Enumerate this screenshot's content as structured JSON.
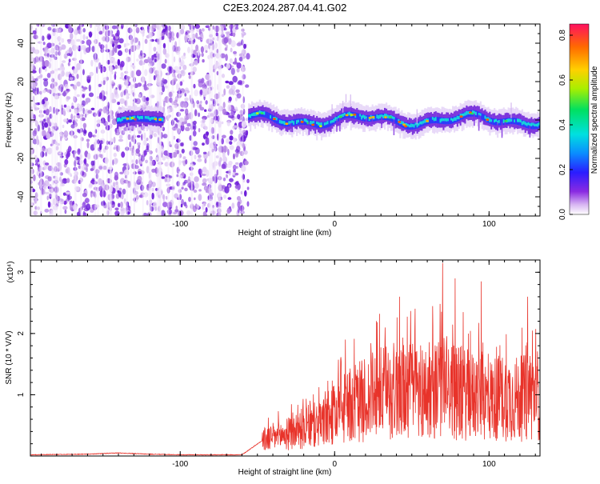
{
  "title": "C2E3.2024.287.04.41.G02",
  "chart_data": [
    {
      "type": "heatmap",
      "xlabel": "Height of straight line (km)",
      "ylabel": "Frequency (Hz)",
      "xlim": [
        -197,
        133
      ],
      "ylim": [
        -50,
        50
      ],
      "xticks": [
        -100,
        0,
        100
      ],
      "yticks": [
        -40,
        -20,
        0,
        20,
        40
      ],
      "noise_region_x": [
        -197,
        -56
      ],
      "signal_patches": [
        {
          "x_start": -141,
          "x_end": -112,
          "center_freq": 0
        },
        {
          "x_start": -56,
          "x_end": 133,
          "center_freq": 0
        }
      ],
      "colorbar": {
        "label": "Normalized spectral amplitude",
        "range": [
          0.0,
          0.85
        ],
        "ticks": [
          0.0,
          0.2,
          0.4,
          0.6,
          0.8
        ],
        "tick_labels": [
          "0.0",
          "0.2",
          "0.4",
          "0.6",
          "0.8"
        ]
      }
    },
    {
      "type": "line",
      "xlabel": "Height of straight line (km)",
      "ylabel": "SNR (10 * V/V)",
      "scale_note": "(x10⁴)",
      "xlim": [
        -197,
        133
      ],
      "ylim": [
        0,
        3.2
      ],
      "xticks": [
        -100,
        0,
        100
      ],
      "yticks": [
        1,
        2,
        3
      ],
      "line_color": "#e8332a",
      "series": [
        {
          "x": [
            -197,
            -160,
            -140,
            -120,
            -100,
            -80,
            -60,
            -47,
            -40,
            -30,
            -20,
            -10,
            0,
            10,
            20,
            30,
            40,
            50,
            60,
            70,
            80,
            90,
            100,
            110,
            120,
            133
          ],
          "values": [
            0.02,
            0.03,
            0.05,
            0.03,
            0.02,
            0.02,
            0.02,
            0.25,
            0.3,
            0.35,
            0.45,
            0.5,
            0.65,
            0.8,
            0.9,
            1.0,
            1.05,
            1.05,
            1.0,
            1.1,
            1.0,
            0.95,
            0.9,
            0.95,
            0.9,
            1.0
          ],
          "peaks": [
            {
              "x": 7,
              "y": 1.9
            },
            {
              "x": 42,
              "y": 2.6
            },
            {
              "x": 70,
              "y": 3.15
            },
            {
              "x": 78,
              "y": 2.9
            },
            {
              "x": 95,
              "y": 2.85
            },
            {
              "x": 125,
              "y": 2.6
            }
          ]
        }
      ]
    }
  ]
}
